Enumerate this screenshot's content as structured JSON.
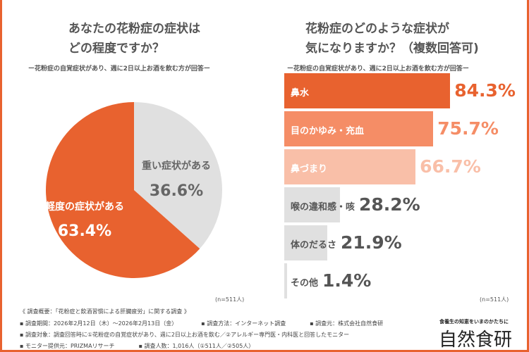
{
  "left": {
    "title": [
      "あなたの花粉症の症状は",
      "どの程度ですか？"
    ],
    "subtitle": "ー花粉症の自覚症状があり、週に2日以上お酒を飲む方が回答ー",
    "n": "(n=511人)"
  },
  "right": {
    "title": [
      "花粉症のどのような症状が",
      "気になりますか？（複数回答可)"
    ],
    "subtitle": "ー花粉症の自覚症状があり、週に2日以上お酒を飲む方が回答ー",
    "n": "(n=511人)"
  },
  "chart_data": [
    {
      "type": "pie",
      "slices": [
        {
          "label": "重い症状がある",
          "value": 36.6,
          "value_label": "36.6%",
          "color": "#e0e0e0"
        },
        {
          "label": "軽度の症状がある",
          "value": 63.4,
          "value_label": "63.4%",
          "color": "#e8622f"
        }
      ]
    },
    {
      "type": "bar",
      "orientation": "horizontal",
      "categories": [
        "鼻水",
        "目のかゆみ・充血",
        "鼻づまり",
        "喉の違和感・咳",
        "体のだるさ",
        "その他"
      ],
      "values": [
        84.3,
        75.7,
        66.7,
        28.2,
        21.9,
        1.4
      ],
      "value_labels": [
        "84.3%",
        "75.7%",
        "66.7%",
        "28.2%",
        "21.9%",
        "1.4%"
      ],
      "colors": [
        "#e8622f",
        "#f58d66",
        "#f9bfa8",
        "#e0e0e0",
        "#e0e0e0",
        "#e0e0e0"
      ],
      "xlim": [
        0,
        100
      ]
    }
  ],
  "footer": {
    "heading": "《 調査概要：「花粉症と飲酒習慣による肝臓疲労」に関する調査 》",
    "lines": [
      [
        "▪ 調査期間：2026年2月12日（木）〜2026年2月13日（金）",
        "▪ 調査方法：インターネット調査",
        "▪ 調査元：株式会社自然食研"
      ],
      [
        "▪ 調査対象：調査回答時に①花粉症の自覚症状があり、週に2日以上お酒を飲む／②アレルギー専門医・内科医と回答したモニター"
      ],
      [
        "▪ モニター提供元：PRIZMAリサーチ",
        "▪ 調査人数：1,016人（①511人／②505人）"
      ]
    ]
  },
  "logo": {
    "tagline": "食養生の知恵をいまのかたちに",
    "name": "自然食研"
  }
}
